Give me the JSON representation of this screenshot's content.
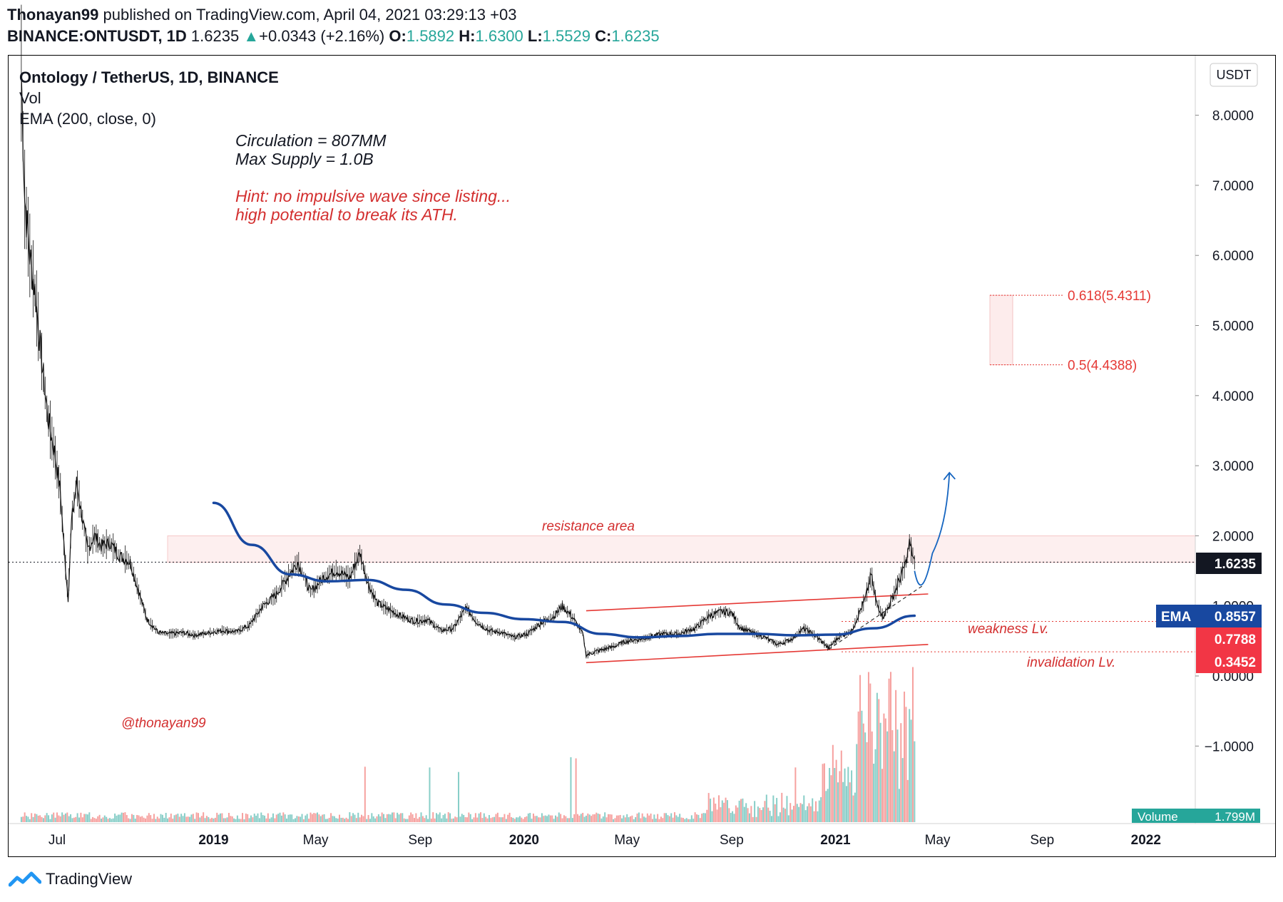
{
  "header": {
    "publisher": "Thonayan99",
    "published_text": "published on TradingView.com, April 04, 2021 03:29:13 +03",
    "symbol": "BINANCE:ONTUSDT, 1D",
    "last": "1.6235",
    "change": "+0.0343 (+2.16%)",
    "o_label": "O:",
    "o": "1.5892",
    "h_label": "H:",
    "h": "1.6300",
    "l_label": "L:",
    "l": "1.5529",
    "c_label": "C:",
    "c": "1.6235"
  },
  "legend": {
    "title": "Ontology / TetherUS, 1D, BINANCE",
    "vol": "Vol",
    "ema": "EMA (200, close, 0)"
  },
  "annotations": {
    "circulation": "Circulation = 807MM",
    "max_supply": "Max Supply = 1.0B",
    "hint1": "Hint: no impulsive wave since listing...",
    "hint2": "high potential to break its ATH.",
    "resistance": "resistance area",
    "weakness": "weakness Lv.",
    "invalidation": "invalidation Lv.",
    "watermark": "@thonayan99",
    "fib_618": "0.618(5.4311)",
    "fib_05": "0.5(4.4388)"
  },
  "right_axis": {
    "currency": "USDT",
    "badge_price": "1.6235",
    "badge_ema_label": "EMA",
    "badge_ema": "0.8557",
    "badge_weak": "0.7788",
    "badge_inval": "0.3452",
    "volume_label": "Volume",
    "volume_value": "1.799M"
  },
  "footer": {
    "brand": "TradingView"
  },
  "colors": {
    "up": "#26a69a",
    "down": "#ef5350",
    "ema": "#1848a0",
    "red_line": "#e53935",
    "annotation_red": "#d32f2f",
    "fib": "#e53935"
  },
  "chart_data": {
    "type": "line",
    "title": "Ontology / TetherUS, 1D, BINANCE",
    "y_ticks": [
      "8.0000",
      "7.0000",
      "6.0000",
      "5.0000",
      "4.0000",
      "3.0000",
      "2.0000",
      "1.0000",
      "0.0000",
      "−1.0000"
    ],
    "y_tick_values": [
      8,
      7,
      6,
      5,
      4,
      3,
      2,
      1,
      0,
      -1
    ],
    "ylim": [
      -2.05,
      8.75
    ],
    "x_ticks": [
      "Jul",
      "2019",
      "May",
      "Sep",
      "2020",
      "May",
      "Sep",
      "2021",
      "May",
      "Sep",
      "2022"
    ],
    "x_tick_dates": [
      "2018-07-01",
      "2019-01-01",
      "2019-05-01",
      "2019-09-01",
      "2020-01-01",
      "2020-05-01",
      "2020-09-01",
      "2021-01-01",
      "2021-05-01",
      "2021-09-01",
      "2022-01-01"
    ],
    "x_range": [
      "2018-05-05",
      "2022-02-28"
    ],
    "price": [
      [
        "2018-05-20",
        8.6
      ],
      [
        "2018-05-24",
        6.8
      ],
      [
        "2018-05-30",
        6.0
      ],
      [
        "2018-06-05",
        5.5
      ],
      [
        "2018-06-12",
        4.6
      ],
      [
        "2018-06-20",
        3.7
      ],
      [
        "2018-06-28",
        3.2
      ],
      [
        "2018-07-05",
        2.6
      ],
      [
        "2018-07-10",
        1.7
      ],
      [
        "2018-07-14",
        1.1
      ],
      [
        "2018-07-18",
        2.2
      ],
      [
        "2018-07-24",
        2.75
      ],
      [
        "2018-07-30",
        2.3
      ],
      [
        "2018-08-06",
        1.8
      ],
      [
        "2018-08-14",
        2.0
      ],
      [
        "2018-08-22",
        1.85
      ],
      [
        "2018-09-01",
        1.9
      ],
      [
        "2018-09-12",
        1.72
      ],
      [
        "2018-09-25",
        1.62
      ],
      [
        "2018-10-05",
        1.2
      ],
      [
        "2018-10-15",
        0.8
      ],
      [
        "2018-10-28",
        0.62
      ],
      [
        "2018-11-10",
        0.6
      ],
      [
        "2018-11-25",
        0.62
      ],
      [
        "2018-12-10",
        0.58
      ],
      [
        "2018-12-28",
        0.62
      ],
      [
        "2019-01-12",
        0.65
      ],
      [
        "2019-01-28",
        0.63
      ],
      [
        "2019-02-12",
        0.72
      ],
      [
        "2019-02-28",
        1.0
      ],
      [
        "2019-03-15",
        1.15
      ],
      [
        "2019-03-31",
        1.45
      ],
      [
        "2019-04-10",
        1.62
      ],
      [
        "2019-04-25",
        1.2
      ],
      [
        "2019-05-10",
        1.4
      ],
      [
        "2019-05-25",
        1.5
      ],
      [
        "2019-06-10",
        1.4
      ],
      [
        "2019-06-22",
        1.75
      ],
      [
        "2019-07-02",
        1.3
      ],
      [
        "2019-07-12",
        1.05
      ],
      [
        "2019-07-25",
        0.95
      ],
      [
        "2019-08-10",
        0.85
      ],
      [
        "2019-08-25",
        0.78
      ],
      [
        "2019-09-10",
        0.8
      ],
      [
        "2019-09-25",
        0.65
      ],
      [
        "2019-10-10",
        0.68
      ],
      [
        "2019-10-25",
        0.98
      ],
      [
        "2019-11-05",
        0.78
      ],
      [
        "2019-11-20",
        0.65
      ],
      [
        "2019-12-05",
        0.62
      ],
      [
        "2019-12-20",
        0.55
      ],
      [
        "2020-01-05",
        0.6
      ],
      [
        "2020-01-20",
        0.75
      ],
      [
        "2020-02-05",
        0.85
      ],
      [
        "2020-02-15",
        1.0
      ],
      [
        "2020-02-28",
        0.82
      ],
      [
        "2020-03-10",
        0.6
      ],
      [
        "2020-03-14",
        0.3
      ],
      [
        "2020-03-28",
        0.36
      ],
      [
        "2020-04-15",
        0.42
      ],
      [
        "2020-05-01",
        0.5
      ],
      [
        "2020-05-20",
        0.53
      ],
      [
        "2020-06-10",
        0.6
      ],
      [
        "2020-07-01",
        0.6
      ],
      [
        "2020-07-20",
        0.68
      ],
      [
        "2020-08-05",
        0.85
      ],
      [
        "2020-08-20",
        0.92
      ],
      [
        "2020-09-01",
        0.9
      ],
      [
        "2020-09-10",
        0.7
      ],
      [
        "2020-09-25",
        0.62
      ],
      [
        "2020-10-10",
        0.55
      ],
      [
        "2020-10-25",
        0.45
      ],
      [
        "2020-11-10",
        0.52
      ],
      [
        "2020-11-25",
        0.68
      ],
      [
        "2020-12-10",
        0.56
      ],
      [
        "2020-12-24",
        0.4
      ],
      [
        "2021-01-05",
        0.56
      ],
      [
        "2021-01-20",
        0.64
      ],
      [
        "2021-02-05",
        1.1
      ],
      [
        "2021-02-12",
        1.45
      ],
      [
        "2021-02-18",
        1.05
      ],
      [
        "2021-02-26",
        0.85
      ],
      [
        "2021-03-05",
        1.0
      ],
      [
        "2021-03-15",
        1.3
      ],
      [
        "2021-03-25",
        1.62
      ],
      [
        "2021-03-29",
        1.9
      ],
      [
        "2021-04-04",
        1.62
      ]
    ],
    "ema": [
      [
        "2019-01-01",
        2.47
      ],
      [
        "2019-02-15",
        1.87
      ],
      [
        "2019-04-01",
        1.45
      ],
      [
        "2019-05-15",
        1.35
      ],
      [
        "2019-07-01",
        1.37
      ],
      [
        "2019-08-15",
        1.23
      ],
      [
        "2019-10-01",
        1.02
      ],
      [
        "2019-11-15",
        0.9
      ],
      [
        "2020-01-01",
        0.81
      ],
      [
        "2020-02-15",
        0.77
      ],
      [
        "2020-04-01",
        0.6
      ],
      [
        "2020-05-15",
        0.55
      ],
      [
        "2020-07-01",
        0.57
      ],
      [
        "2020-08-15",
        0.6
      ],
      [
        "2020-10-01",
        0.6
      ],
      [
        "2020-11-15",
        0.58
      ],
      [
        "2021-01-01",
        0.59
      ],
      [
        "2021-02-15",
        0.68
      ],
      [
        "2021-04-04",
        0.86
      ]
    ],
    "levels": {
      "resistance_area": [
        1.62,
        2.0
      ],
      "weakness": 0.7788,
      "invalidation": 0.3452,
      "fib_618": 5.4311,
      "fib_05": 4.4388
    },
    "channel": {
      "upper": [
        [
          "2020-03-14",
          0.93
        ],
        [
          "2021-04-20",
          1.17
        ]
      ],
      "lower": [
        [
          "2020-03-14",
          0.19
        ],
        [
          "2021-04-20",
          0.45
        ]
      ]
    },
    "projection": [
      [
        "2021-04-04",
        1.5
      ],
      [
        "2021-04-12",
        1.3
      ],
      [
        "2021-04-25",
        1.75
      ],
      [
        "2021-05-15",
        2.9
      ]
    ],
    "volume": {
      "label": "Volume",
      "last": "1.799M"
    }
  }
}
